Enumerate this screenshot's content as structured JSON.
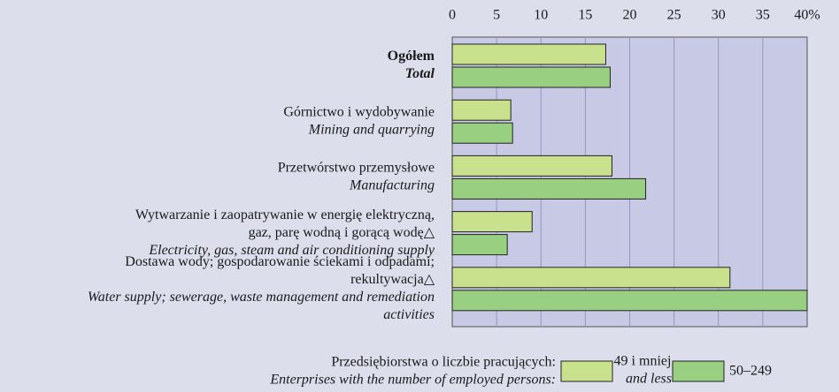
{
  "chart_data": {
    "type": "hbar",
    "categories": [
      {
        "pl": [
          "Ogółem"
        ],
        "en": [
          "Total"
        ]
      },
      {
        "pl": [
          "Górnictwo i wydobywanie"
        ],
        "en": [
          "Mining and quarrying"
        ]
      },
      {
        "pl": [
          "Przetwórstwo przemysłowe"
        ],
        "en": [
          "Manufacturing"
        ]
      },
      {
        "pl": [
          "Wytwarzanie i zaopatrywanie w energię elektryczną,",
          "gaz, parę wodną i gorącą wodę△"
        ],
        "en": [
          "Electricity, gas, steam and air conditioning supply"
        ]
      },
      {
        "pl": [
          "Dostawa wody; gospodarowanie ściekami i odpadami;",
          "rekultywacja△"
        ],
        "en": [
          "Water supply; sewerage, waste management and remediation",
          "activities"
        ]
      }
    ],
    "series": [
      {
        "name": "49 i mniej",
        "name_en": "and less",
        "color": "#c9e18c",
        "values": [
          17.3,
          6.6,
          18.0,
          9.0,
          31.3
        ]
      },
      {
        "name": "50–249",
        "color": "#98cf80",
        "values": [
          17.8,
          6.8,
          21.8,
          6.2,
          40.0
        ]
      }
    ],
    "legend_title": [
      "Przedsiębiorstwa o liczbie pracujących:",
      "Enterprises with the number of employed persons:"
    ],
    "xlim": [
      0,
      40
    ],
    "xticks": [
      0,
      5,
      10,
      15,
      20,
      25,
      30,
      35,
      {
        "value": 40,
        "label": "40%"
      }
    ],
    "grid": true
  }
}
